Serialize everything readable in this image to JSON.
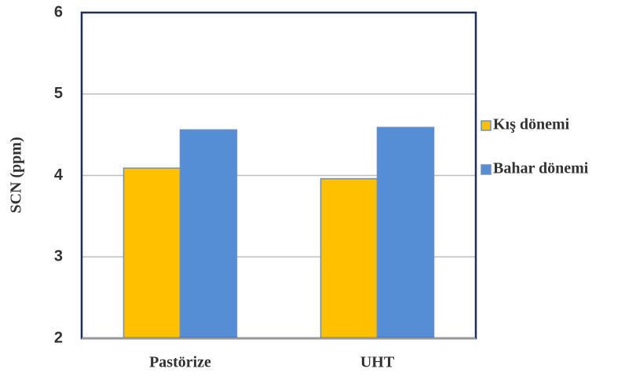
{
  "chart_data": {
    "type": "bar",
    "y_label": "SCN (ppm)",
    "categories": [
      "Pastörize",
      "UHT"
    ],
    "series": [
      {
        "name": "Kış dönemi",
        "color": "#ffc000",
        "values": [
          4.09,
          3.96
        ]
      },
      {
        "name": "Bahar dönemi",
        "color": "#558ed5",
        "values": [
          4.56,
          4.59
        ]
      }
    ],
    "ylim": [
      2,
      6
    ],
    "yticks": [
      2,
      3,
      4,
      5,
      6
    ],
    "grid": true,
    "legend": "right"
  }
}
